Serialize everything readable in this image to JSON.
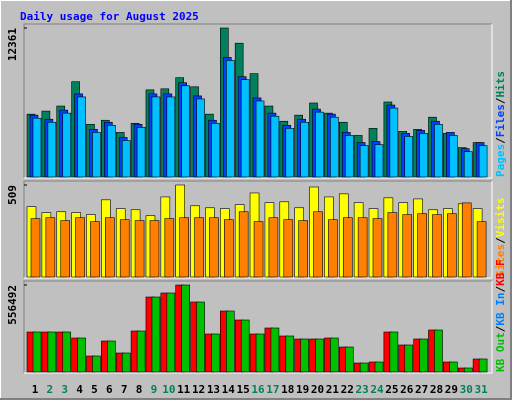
{
  "separator": "/",
  "chart_data": [
    {
      "type": "bar",
      "title": "Daily usage for August 2025",
      "ylim": [
        0,
        12361
      ],
      "yticks": [
        12361
      ],
      "series": [
        {
          "name": "Hits",
          "color": "#00805c",
          "values": [
            5214,
            5466,
            5887,
            7905,
            4373,
            4709,
            3700,
            4457,
            7232,
            7317,
            8241,
            7484,
            5214,
            12361,
            11100,
            8577,
            5887,
            4625,
            5130,
            6139,
            5298,
            4541,
            3448,
            4036,
            6223,
            3784,
            3952,
            4961,
            3616,
            2439,
            2859
          ]
        },
        {
          "name": "Files",
          "color": "#0040ff",
          "values": [
            5130,
            4793,
            5550,
            6895,
            3952,
            4541,
            3280,
            4373,
            6895,
            6895,
            7821,
            6727,
            4709,
            9922,
            8325,
            6559,
            5298,
            4289,
            4793,
            5634,
            5214,
            3700,
            2859,
            2943,
            5971,
            3616,
            3868,
            4625,
            3700,
            2354,
            2859
          ]
        },
        {
          "name": "Pages",
          "color": "#00c0ff",
          "values": [
            4877,
            4541,
            5298,
            6643,
            3700,
            4289,
            3027,
            4120,
            6643,
            6643,
            7568,
            6475,
            4457,
            9670,
            8073,
            6307,
            5045,
            4036,
            4541,
            5382,
            4961,
            3448,
            2607,
            2691,
            5718,
            3364,
            3616,
            4373,
            3448,
            2102,
            2607
          ]
        }
      ]
    },
    {
      "type": "bar",
      "ylim": [
        0,
        509
      ],
      "yticks": [
        509
      ],
      "series": [
        {
          "name": "Visits",
          "color": "#ffff00",
          "values": [
            389,
            356,
            361,
            356,
            345,
            427,
            378,
            372,
            339,
            443,
            509,
            394,
            383,
            378,
            400,
            465,
            411,
            416,
            383,
            498,
            443,
            460,
            411,
            378,
            438,
            411,
            432,
            372,
            378,
            405,
            378
          ]
        },
        {
          "name": "Sites",
          "color": "#ff8000",
          "values": [
            323,
            328,
            312,
            328,
            306,
            328,
            317,
            312,
            312,
            323,
            328,
            328,
            328,
            317,
            361,
            306,
            328,
            317,
            312,
            361,
            317,
            328,
            328,
            323,
            356,
            345,
            350,
            345,
            350,
            410,
            306
          ]
        }
      ]
    },
    {
      "type": "bar",
      "ylim": [
        0,
        556492
      ],
      "yticks": [
        556492
      ],
      "categories": [
        "1",
        "2",
        "3",
        "4",
        "5",
        "6",
        "7",
        "8",
        "9",
        "10",
        "11",
        "12",
        "13",
        "14",
        "15",
        "16",
        "17",
        "18",
        "19",
        "20",
        "21",
        "22",
        "23",
        "24",
        "25",
        "26",
        "27",
        "28",
        "29",
        "30",
        "31"
      ],
      "category_colors": [
        "#000000",
        "#00805c",
        "#00805c",
        "#000000",
        "#000000",
        "#000000",
        "#000000",
        "#000000",
        "#00805c",
        "#00805c",
        "#000000",
        "#000000",
        "#000000",
        "#000000",
        "#000000",
        "#00805c",
        "#00805c",
        "#000000",
        "#000000",
        "#000000",
        "#000000",
        "#000000",
        "#00805c",
        "#00805c",
        "#000000",
        "#000000",
        "#000000",
        "#000000",
        "#000000",
        "#00805c",
        "#00805c"
      ],
      "series": [
        {
          "name": "KB F",
          "color": "#ff0000",
          "values": [
            255835,
            255835,
            255835,
            217472,
            102339,
            198283,
            121527,
            262232,
            479700,
            505286,
            556492,
            447727,
            243050,
            390161,
            332596,
            243050,
            281428,
            230258,
            211070,
            211070,
            217472,
            159903,
            57566,
            63963,
            255835,
            172696,
            211070,
            268638,
            63963,
            25585,
            83150
          ]
        },
        {
          "name": "KB In",
          "color": "#0080ff",
          "values": [
            0,
            0,
            0,
            0,
            0,
            0,
            0,
            0,
            0,
            0,
            0,
            0,
            0,
            0,
            0,
            0,
            0,
            0,
            0,
            0,
            0,
            0,
            0,
            0,
            0,
            0,
            0,
            0,
            0,
            0,
            0
          ]
        },
        {
          "name": "KB Out",
          "color": "#00c000",
          "values": [
            255835,
            255835,
            255835,
            217472,
            102339,
            198283,
            121527,
            262232,
            479700,
            505286,
            556492,
            447727,
            243050,
            390161,
            332596,
            243050,
            281428,
            230258,
            211070,
            211070,
            217472,
            159903,
            57566,
            63963,
            255835,
            172696,
            211070,
            268638,
            63963,
            25585,
            83150
          ]
        }
      ]
    }
  ]
}
